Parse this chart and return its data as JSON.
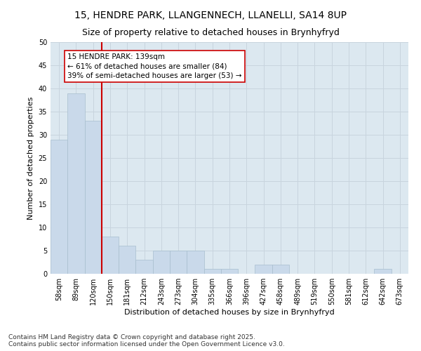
{
  "title1": "15, HENDRE PARK, LLANGENNECH, LLANELLI, SA14 8UP",
  "title2": "Size of property relative to detached houses in Brynhyfryd",
  "xlabel": "Distribution of detached houses by size in Brynhyfryd",
  "ylabel": "Number of detached properties",
  "categories": [
    "58sqm",
    "89sqm",
    "120sqm",
    "150sqm",
    "181sqm",
    "212sqm",
    "243sqm",
    "273sqm",
    "304sqm",
    "335sqm",
    "366sqm",
    "396sqm",
    "427sqm",
    "458sqm",
    "489sqm",
    "519sqm",
    "550sqm",
    "581sqm",
    "612sqm",
    "642sqm",
    "673sqm"
  ],
  "values": [
    29,
    39,
    33,
    8,
    6,
    3,
    5,
    5,
    5,
    1,
    1,
    0,
    2,
    2,
    0,
    0,
    0,
    0,
    0,
    1,
    0
  ],
  "bar_color": "#c9d9ea",
  "bar_edge_color": "#a8bece",
  "vline_color": "#cc0000",
  "annotation_text": "15 HENDRE PARK: 139sqm\n← 61% of detached houses are smaller (84)\n39% of semi-detached houses are larger (53) →",
  "annotation_box_color": "#ffffff",
  "annotation_box_edge": "#cc0000",
  "ylim": [
    0,
    50
  ],
  "yticks": [
    0,
    5,
    10,
    15,
    20,
    25,
    30,
    35,
    40,
    45,
    50
  ],
  "grid_color": "#c8d4de",
  "bg_color": "#dce8f0",
  "footnote": "Contains HM Land Registry data © Crown copyright and database right 2025.\nContains public sector information licensed under the Open Government Licence v3.0.",
  "title1_fontsize": 10,
  "title2_fontsize": 9,
  "xlabel_fontsize": 8,
  "ylabel_fontsize": 8,
  "tick_fontsize": 7,
  "annotation_fontsize": 7.5,
  "footnote_fontsize": 6.5
}
